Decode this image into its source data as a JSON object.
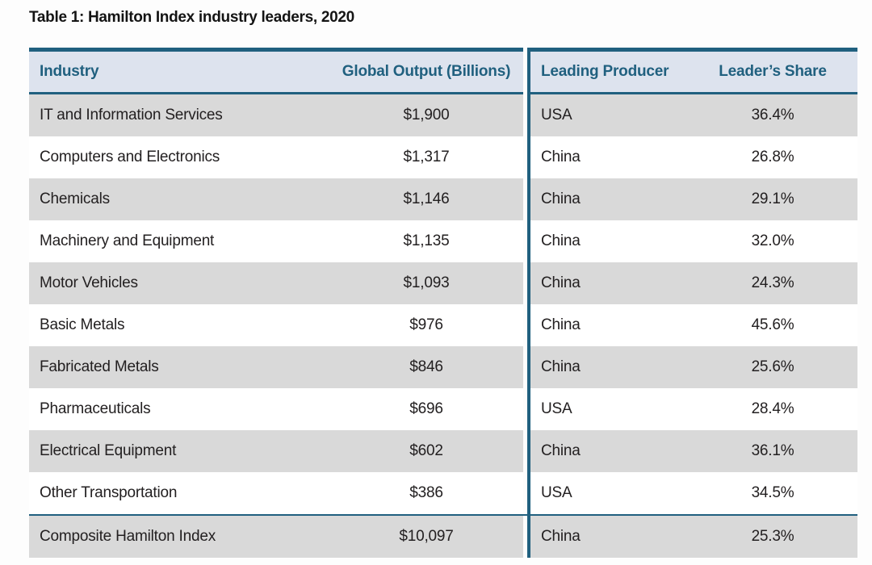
{
  "title": "Table 1: Hamilton Index industry leaders, 2020",
  "colors": {
    "accent_teal": "#20607f",
    "header_background": "#dde3ee",
    "row_gray": "#d9d9d9",
    "row_white": "#ffffff",
    "body_text": "#232021"
  },
  "table": {
    "columns": [
      "Industry",
      "Global Output (Billions)",
      "Leading Producer",
      "Leader’s Share"
    ],
    "rows": [
      {
        "industry": "IT and Information Services",
        "global_output": "$1,900",
        "leading_producer": "USA",
        "leaders_share": "36.4%"
      },
      {
        "industry": "Computers and Electronics",
        "global_output": "$1,317",
        "leading_producer": "China",
        "leaders_share": "26.8%"
      },
      {
        "industry": "Chemicals",
        "global_output": "$1,146",
        "leading_producer": "China",
        "leaders_share": "29.1%"
      },
      {
        "industry": "Machinery and Equipment",
        "global_output": "$1,135",
        "leading_producer": "China",
        "leaders_share": "32.0%"
      },
      {
        "industry": "Motor Vehicles",
        "global_output": "$1,093",
        "leading_producer": "China",
        "leaders_share": "24.3%"
      },
      {
        "industry": "Basic Metals",
        "global_output": "$976",
        "leading_producer": "China",
        "leaders_share": "45.6%"
      },
      {
        "industry": "Fabricated Metals",
        "global_output": "$846",
        "leading_producer": "China",
        "leaders_share": "25.6%"
      },
      {
        "industry": "Pharmaceuticals",
        "global_output": "$696",
        "leading_producer": "USA",
        "leaders_share": "28.4%"
      },
      {
        "industry": "Electrical Equipment",
        "global_output": "$602",
        "leading_producer": "China",
        "leaders_share": "36.1%"
      },
      {
        "industry": "Other Transportation",
        "global_output": "$386",
        "leading_producer": "USA",
        "leaders_share": "34.5%"
      },
      {
        "industry": "Composite Hamilton Index",
        "global_output": "$10,097",
        "leading_producer": "China",
        "leaders_share": "25.3%"
      }
    ]
  }
}
